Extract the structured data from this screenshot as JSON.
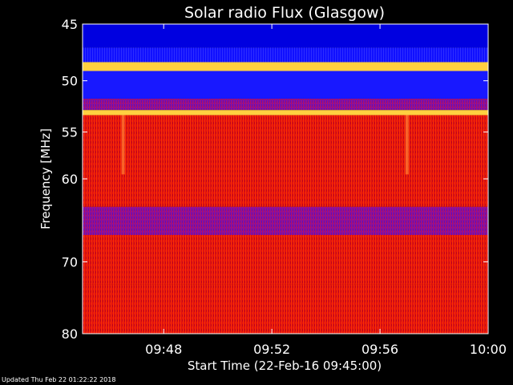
{
  "chart_data": {
    "type": "heatmap",
    "title": "Solar radio Flux (Glasgow)",
    "ylabel": "Frequency [MHz]",
    "xlabel": "Start Time (22-Feb-16 09:45:00)",
    "y_axis": {
      "ticks": [
        45,
        50,
        55,
        60,
        70,
        80
      ],
      "reversed": true,
      "scale": "log",
      "range": [
        45,
        80
      ]
    },
    "x_axis": {
      "ticks": [
        "09:48",
        "09:52",
        "09:56",
        "10:00"
      ],
      "range": [
        "09:45",
        "10:00"
      ]
    },
    "palette": {
      "low": "#0000ff",
      "mid": "#ff0000",
      "high": "#ffff00"
    },
    "bands": [
      {
        "from": 45,
        "to": 47.0,
        "level": "low"
      },
      {
        "from": 47.0,
        "to": 48.3,
        "level": "low"
      },
      {
        "from": 48.3,
        "to": 49.1,
        "level": "high"
      },
      {
        "from": 49.1,
        "to": 51.7,
        "level": "low"
      },
      {
        "from": 51.7,
        "to": 52.8,
        "level": "low"
      },
      {
        "from": 52.8,
        "to": 53.3,
        "level": "high"
      },
      {
        "from": 53.3,
        "to": 63.2,
        "level": "mid"
      },
      {
        "from": 63.2,
        "to": 66.6,
        "level": "low"
      },
      {
        "from": 66.6,
        "to": 73.0,
        "level": "mid"
      },
      {
        "from": 73.0,
        "to": 80,
        "level": "mid"
      }
    ],
    "features": [
      {
        "time": "09:46:30",
        "from_freq": 53.3,
        "to_freq": 59.5,
        "level": "high"
      },
      {
        "time": "09:57:00",
        "from_freq": 53.3,
        "to_freq": 59.5,
        "level": "high"
      }
    ]
  },
  "footer": {
    "updated": "Updated Thu Feb 22 01:22:22 2018"
  }
}
